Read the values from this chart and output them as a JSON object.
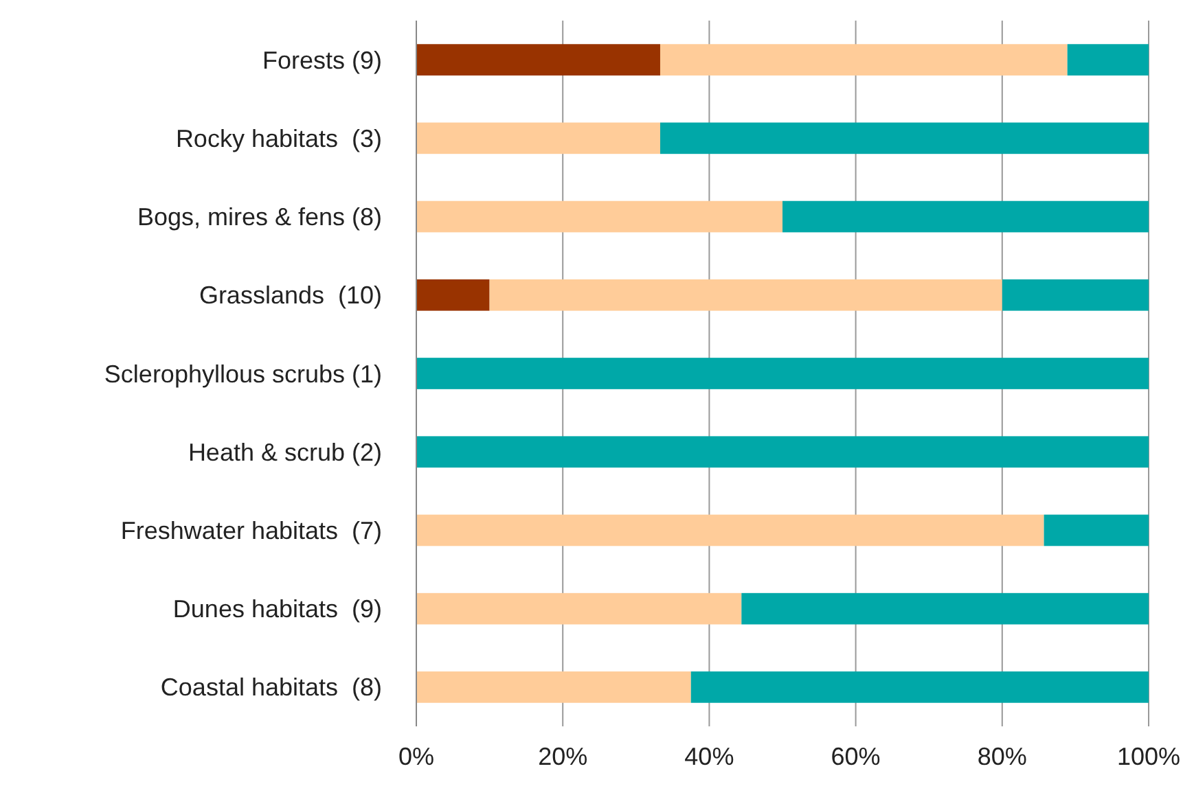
{
  "chart_data": {
    "type": "bar",
    "orientation": "horizontal",
    "stacked": true,
    "categories": [
      "Forests (9)",
      "Rocky habitats  (3)",
      "Bogs, mires & fens (8)",
      "Grasslands  (10)",
      "Sclerophyllous scrubs (1)",
      "Heath & scrub (2)",
      "Freshwater habitats  (7)",
      "Dunes habitats  (9)",
      "Coastal habitats  (8)"
    ],
    "series": [
      {
        "color": "#993300",
        "values": [
          33.3,
          null,
          null,
          10,
          null,
          null,
          null,
          null,
          null
        ]
      },
      {
        "color": "#ffcc99",
        "values": [
          55.6,
          33.3,
          50,
          70,
          null,
          null,
          85.7,
          44.4,
          37.5
        ]
      },
      {
        "color": "#00a8a8",
        "values": [
          11.1,
          66.7,
          50,
          20,
          100,
          100,
          14.3,
          55.6,
          62.5
        ]
      }
    ],
    "xlim": [
      0,
      100
    ],
    "xticks": [
      {
        "value": 0,
        "label": "0%"
      },
      {
        "value": 20,
        "label": "20%"
      },
      {
        "value": 40,
        "label": "40%"
      },
      {
        "value": 60,
        "label": "60%"
      },
      {
        "value": 80,
        "label": "80%"
      },
      {
        "value": 100,
        "label": "100%"
      }
    ],
    "grid": "x"
  }
}
